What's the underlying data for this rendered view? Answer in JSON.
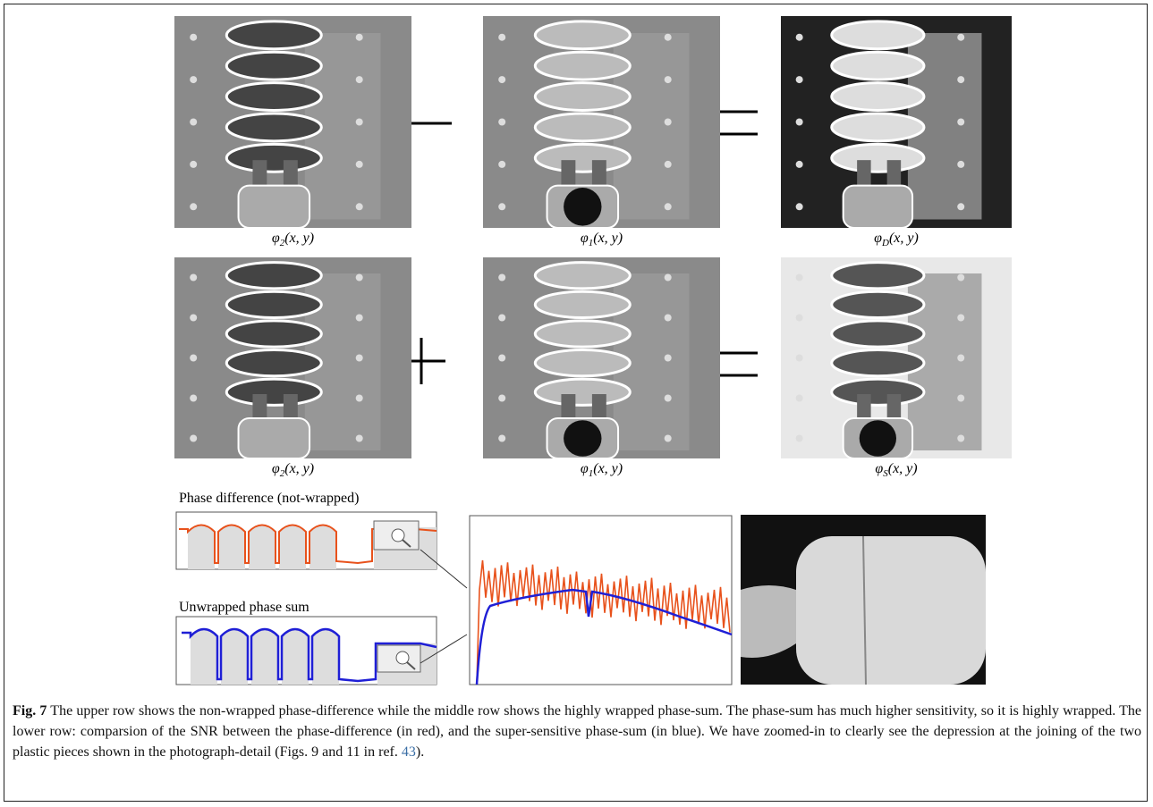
{
  "panels": [
    {
      "symbol": "φ",
      "sub": "2",
      "args": "(x, y)"
    },
    {
      "symbol": "φ",
      "sub": "1",
      "args": "(x, y)"
    },
    {
      "symbol": "φ",
      "sub": "D",
      "args": "(x, y)"
    },
    {
      "symbol": "φ",
      "sub": "2",
      "args": "(x, y)"
    },
    {
      "symbol": "φ",
      "sub": "1",
      "args": "(x, y)"
    },
    {
      "symbol": "φ",
      "sub": "S",
      "args": "(x, y)"
    }
  ],
  "plots": {
    "difference_title": "Phase difference (not-wrapped)",
    "sum_title": "Unwrapped phase sum"
  },
  "caption": {
    "label": "Fig. 7",
    "text": " The upper row shows the non-wrapped phase-difference while the middle row shows the highly wrapped phase-sum. The phase-sum has much higher sensitivity, so it is highly wrapped. The lower row: comparsion of the SNR between the phase-difference (in red), and the super-sensitive phase-sum (in blue). We have zoomed-in to clearly see the depression at the joining of the two plastic pieces shown in the photograph-detail (Figs. 9 and 11 in ref. ",
    "ref": "43",
    "end": ")."
  }
}
